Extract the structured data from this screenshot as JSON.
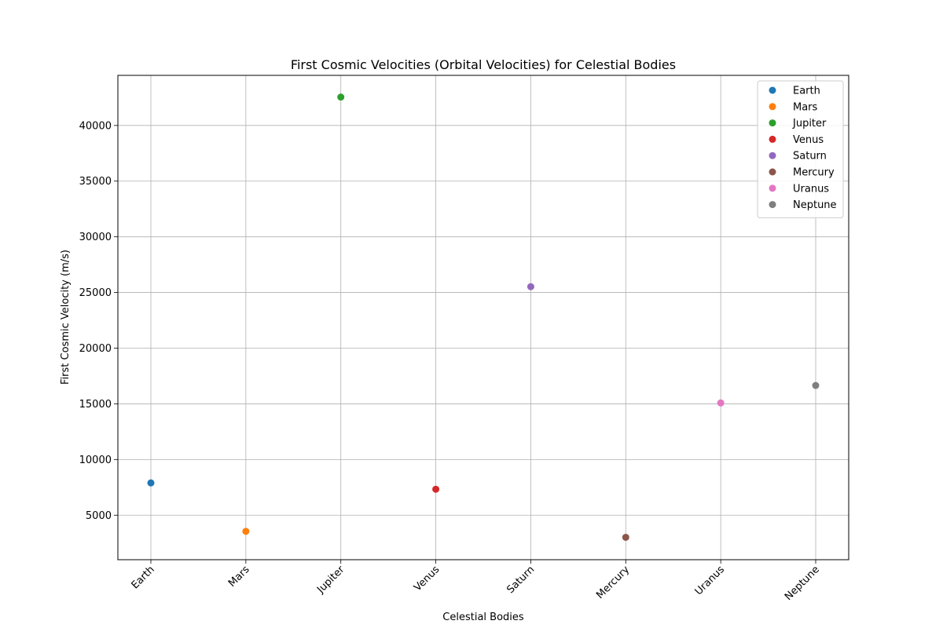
{
  "chart_data": {
    "type": "scatter",
    "title": "First Cosmic Velocities (Orbital Velocities) for Celestial Bodies",
    "xlabel": "Celestial Bodies",
    "ylabel": "First Cosmic Velocity (m/s)",
    "categories": [
      "Earth",
      "Mars",
      "Jupiter",
      "Venus",
      "Saturn",
      "Mercury",
      "Uranus",
      "Neptune"
    ],
    "ylim": [
      1000,
      44500
    ],
    "yticks": [
      5000,
      10000,
      15000,
      20000,
      25000,
      30000,
      35000,
      40000
    ],
    "grid": true,
    "legend_position": "top-right",
    "series": [
      {
        "name": "Earth",
        "x": "Earth",
        "value": 7900,
        "color": "#1f77b4"
      },
      {
        "name": "Mars",
        "x": "Mars",
        "value": 3550,
        "color": "#ff7f0e"
      },
      {
        "name": "Jupiter",
        "x": "Jupiter",
        "value": 42550,
        "color": "#2ca02c"
      },
      {
        "name": "Venus",
        "x": "Venus",
        "value": 7330,
        "color": "#d62728"
      },
      {
        "name": "Saturn",
        "x": "Saturn",
        "value": 25520,
        "color": "#9467bd"
      },
      {
        "name": "Mercury",
        "x": "Mercury",
        "value": 3010,
        "color": "#8c564b"
      },
      {
        "name": "Uranus",
        "x": "Uranus",
        "value": 15080,
        "color": "#e377c2"
      },
      {
        "name": "Neptune",
        "x": "Neptune",
        "value": 16650,
        "color": "#7f7f7f"
      }
    ]
  }
}
